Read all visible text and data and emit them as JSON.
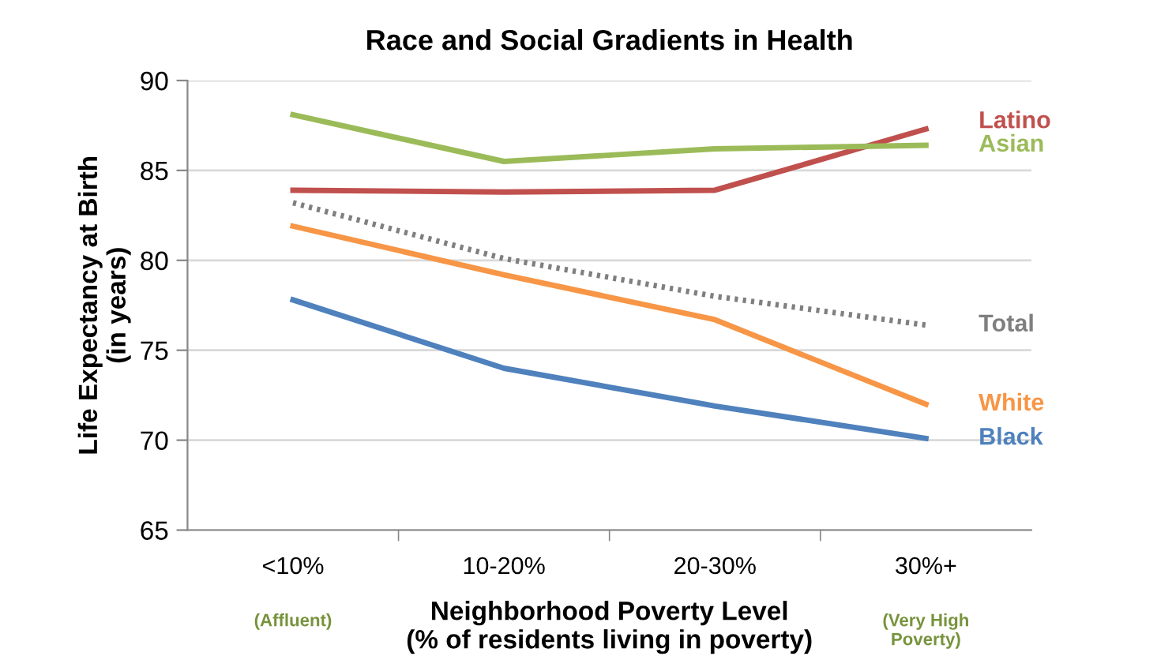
{
  "chart_data": {
    "type": "line",
    "title": "Race and Social Gradients in Health",
    "xlabel": "Neighborhood Poverty Level\n(% of residents living in poverty)",
    "ylabel": "Life Expectancy at Birth\n(in years)",
    "categories": [
      "<10%",
      "10-20%",
      "20-30%",
      "30%+"
    ],
    "series": [
      {
        "name": "Latino",
        "color": "#c0504d",
        "values": [
          83.9,
          83.8,
          83.9,
          87.3
        ]
      },
      {
        "name": "Asian",
        "color": "#9bbb59",
        "values": [
          88.1,
          85.5,
          86.2,
          86.4
        ]
      },
      {
        "name": "Total",
        "color": "#7f7f7f",
        "line_style": "dotted",
        "values": [
          83.2,
          80.1,
          78.0,
          76.4
        ]
      },
      {
        "name": "White",
        "color": "#f79646",
        "values": [
          81.9,
          79.2,
          76.7,
          72.0
        ]
      },
      {
        "name": "Black",
        "color": "#4f81bd",
        "values": [
          77.8,
          74.0,
          71.9,
          70.1
        ]
      }
    ],
    "ylim": [
      65,
      90
    ],
    "yticks": [
      65,
      70,
      75,
      80,
      85,
      90
    ],
    "grid": "y",
    "legend": false,
    "annotations": [
      "(Affluent)",
      "(Very High\nPoverty)"
    ]
  }
}
